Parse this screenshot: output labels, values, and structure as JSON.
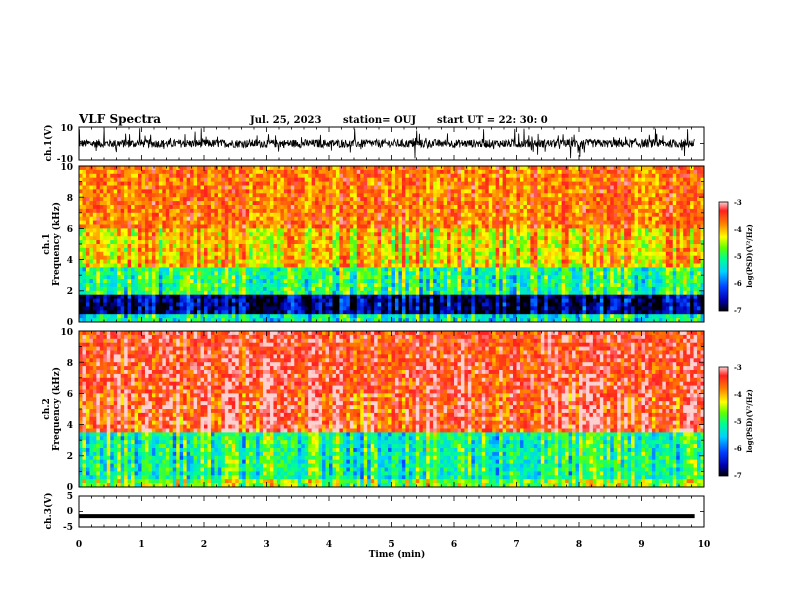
{
  "header": {
    "title": "VLF Spectra",
    "date": "Jul. 25, 2023",
    "station": "station= OUJ",
    "start": "start UT = 22: 30: 0"
  },
  "chart_data": [
    {
      "name": "ch1-waveform",
      "type": "line",
      "ylabel": "ch.1(V)",
      "ylim": [
        -10,
        10
      ],
      "y_ticks": [
        "10",
        "-10"
      ],
      "xlim": [
        0,
        10
      ],
      "baseline": 0,
      "trace_range_min": [
        0,
        9.85
      ]
    },
    {
      "name": "ch1-spectrogram",
      "type": "heatmap",
      "ylabel_top": "ch.1",
      "ylabel": "Frequency (kHz)",
      "ylim": [
        0,
        10
      ],
      "y_ticks": [
        "0",
        "2",
        "4",
        "6",
        "8",
        "10"
      ],
      "xlim": [
        0,
        10
      ],
      "colorbar": {
        "label": "log(PSD)(V²/Hz)",
        "range": [
          -7,
          -3
        ],
        "ticks": [
          "-3",
          "-4",
          "-5",
          "-6",
          "-7"
        ]
      },
      "bands": [
        {
          "from": 0,
          "to": 0.5,
          "level": 0.45
        },
        {
          "from": 0.5,
          "to": 1.8,
          "level": 0.08
        },
        {
          "from": 1.8,
          "to": 3.5,
          "level": 0.5
        },
        {
          "from": 3.5,
          "to": 6.0,
          "level": 0.72
        },
        {
          "from": 6.0,
          "to": 10,
          "level": 0.82
        }
      ]
    },
    {
      "name": "ch2-spectrogram",
      "type": "heatmap",
      "ylabel_top": "ch.2",
      "ylabel": "Frequency (kHz)",
      "ylim": [
        0,
        10
      ],
      "y_ticks": [
        "0",
        "2",
        "4",
        "6",
        "8",
        "10"
      ],
      "xlim": [
        0,
        10
      ],
      "colorbar": {
        "label": "log(PSD)(V²/Hz)",
        "range": [
          -7,
          -3
        ],
        "ticks": [
          "-3",
          "-4",
          "-5",
          "-6",
          "-7"
        ]
      },
      "bands": [
        {
          "from": 0,
          "to": 0.4,
          "level": 0.6
        },
        {
          "from": 0.4,
          "to": 3.5,
          "level": 0.48
        },
        {
          "from": 3.5,
          "to": 10,
          "level": 0.9
        }
      ]
    },
    {
      "name": "ch3-waveform",
      "type": "line",
      "ylabel": "ch.3(V)",
      "ylim": [
        -5,
        5
      ],
      "y_ticks": [
        "5",
        "0",
        "-5"
      ],
      "xlim": [
        0,
        10
      ],
      "x": [
        0,
        9.85
      ],
      "y": [
        -1.5,
        -1.5
      ]
    }
  ],
  "x_axis": {
    "label": "Time (min)",
    "ticks": [
      "0",
      "1",
      "2",
      "3",
      "4",
      "5",
      "6",
      "7",
      "8",
      "9",
      "10"
    ]
  },
  "colors": {
    "ink": "#000000",
    "colormap": [
      "#000000",
      "#0000b0",
      "#0040ff",
      "#00d0ff",
      "#00ff90",
      "#60ff00",
      "#ffff00",
      "#ff8000",
      "#ff2020",
      "#ffd0d0"
    ]
  }
}
